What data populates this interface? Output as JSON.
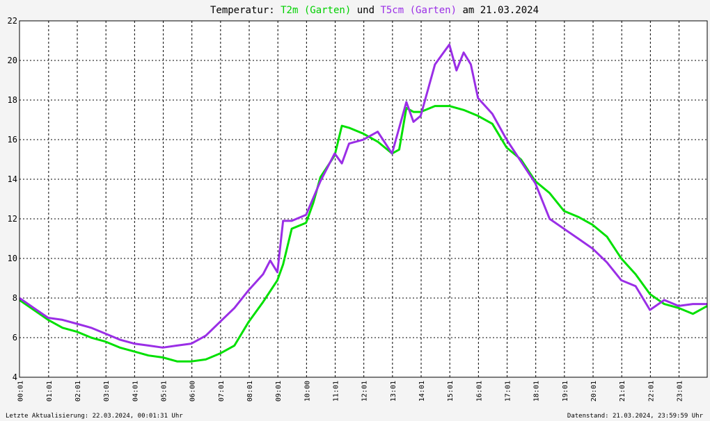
{
  "title": {
    "prefix": "Temperatur: ",
    "series1": "T2m (Garten)",
    "middle": " und ",
    "series2": "T5cm (Garten)",
    "suffix": " am 21.03.2024"
  },
  "footer": {
    "left": "Letzte Aktualisierung: 22.03.2024, 00:01:31 Uhr",
    "right": "Datenstand: 21.03.2024, 23:59:59 Uhr"
  },
  "colors": {
    "background": "#f4f4f4",
    "plot": "#ffffff",
    "grid": "#000000",
    "t2m": "#00e000",
    "t5cm": "#9a2ee6"
  },
  "chart_data": {
    "type": "line",
    "grid": true,
    "xlim": [
      0,
      24
    ],
    "ylim": [
      4,
      22
    ],
    "yticks": [
      4,
      6,
      8,
      10,
      12,
      14,
      16,
      18,
      20,
      22
    ],
    "xticks": [
      "00:01",
      "01:01",
      "02:01",
      "03:01",
      "04:01",
      "05:01",
      "06:00",
      "07:01",
      "08:01",
      "09:01",
      "10:00",
      "11:01",
      "12:01",
      "13:01",
      "14:01",
      "15:01",
      "16:01",
      "17:01",
      "18:01",
      "19:01",
      "20:01",
      "21:01",
      "22:01",
      "23:01"
    ],
    "series": [
      {
        "name": "T2m (Garten)",
        "color": "#00e000",
        "x": [
          0,
          0.5,
          1,
          1.5,
          2,
          2.5,
          3,
          3.5,
          4,
          4.5,
          5,
          5.5,
          6,
          6.5,
          7,
          7.5,
          8,
          8.5,
          9,
          9.2,
          9.5,
          10,
          10.25,
          10.5,
          11,
          11.25,
          11.5,
          12,
          12.5,
          13,
          13.25,
          13.5,
          13.75,
          14,
          14.5,
          15,
          15.5,
          16,
          16.5,
          17,
          17.5,
          18,
          18.5,
          19,
          19.5,
          20,
          20.5,
          21,
          21.5,
          22,
          22.5,
          23,
          23.5,
          24
        ],
        "values": [
          7.9,
          7.4,
          6.9,
          6.5,
          6.3,
          6.0,
          5.8,
          5.5,
          5.3,
          5.1,
          5.0,
          4.8,
          4.8,
          4.9,
          5.2,
          5.6,
          6.8,
          7.8,
          8.9,
          9.7,
          11.5,
          11.8,
          12.8,
          14.1,
          15.2,
          16.7,
          16.6,
          16.3,
          15.9,
          15.3,
          15.5,
          17.6,
          17.4,
          17.4,
          17.7,
          17.7,
          17.5,
          17.2,
          16.8,
          15.6,
          15.0,
          13.9,
          13.3,
          12.4,
          12.1,
          11.7,
          11.1,
          10.0,
          9.2,
          8.2,
          7.7,
          7.5,
          7.2,
          7.6
        ]
      },
      {
        "name": "T5cm (Garten)",
        "color": "#9a2ee6",
        "x": [
          0,
          0.5,
          1,
          1.5,
          2,
          2.5,
          3,
          3.5,
          4,
          4.5,
          5,
          5.5,
          6,
          6.5,
          7,
          7.5,
          8,
          8.5,
          8.75,
          9,
          9.2,
          9.5,
          10,
          10.5,
          11,
          11.25,
          11.5,
          12,
          12.5,
          13,
          13.25,
          13.5,
          13.75,
          14,
          14.5,
          15,
          15.25,
          15.5,
          15.75,
          16,
          16.5,
          17,
          17.5,
          18,
          18.5,
          19,
          19.5,
          20,
          20.5,
          21,
          21.5,
          22,
          22.5,
          23,
          23.5,
          24
        ],
        "values": [
          8.0,
          7.5,
          7.0,
          6.9,
          6.7,
          6.5,
          6.2,
          5.9,
          5.7,
          5.6,
          5.5,
          5.6,
          5.7,
          6.1,
          6.8,
          7.5,
          8.4,
          9.2,
          9.9,
          9.3,
          11.9,
          11.9,
          12.2,
          13.9,
          15.3,
          14.8,
          15.8,
          16.0,
          16.4,
          15.3,
          16.6,
          17.9,
          16.9,
          17.2,
          19.8,
          20.8,
          19.5,
          20.4,
          19.8,
          18.1,
          17.3,
          16.0,
          14.9,
          13.8,
          12.0,
          11.5,
          11.0,
          10.5,
          9.8,
          8.9,
          8.6,
          7.4,
          7.9,
          7.6,
          7.7,
          7.7
        ]
      }
    ]
  }
}
